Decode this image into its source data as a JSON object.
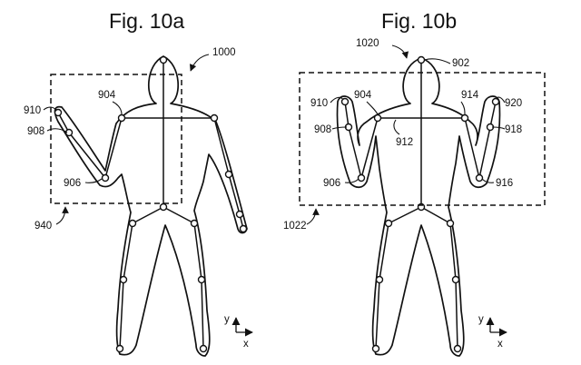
{
  "figures": [
    {
      "id": "10a",
      "title": "Fig. 10a",
      "labels": [
        "1000",
        "904",
        "910",
        "908",
        "906",
        "940"
      ],
      "axes": {
        "y": "y",
        "x": "x"
      }
    },
    {
      "id": "10b",
      "title": "Fig. 10b",
      "labels": [
        "1020",
        "902",
        "910",
        "904",
        "914",
        "920",
        "908",
        "912",
        "918",
        "906",
        "916",
        "1022"
      ],
      "axes": {
        "y": "y",
        "x": "x"
      }
    }
  ]
}
